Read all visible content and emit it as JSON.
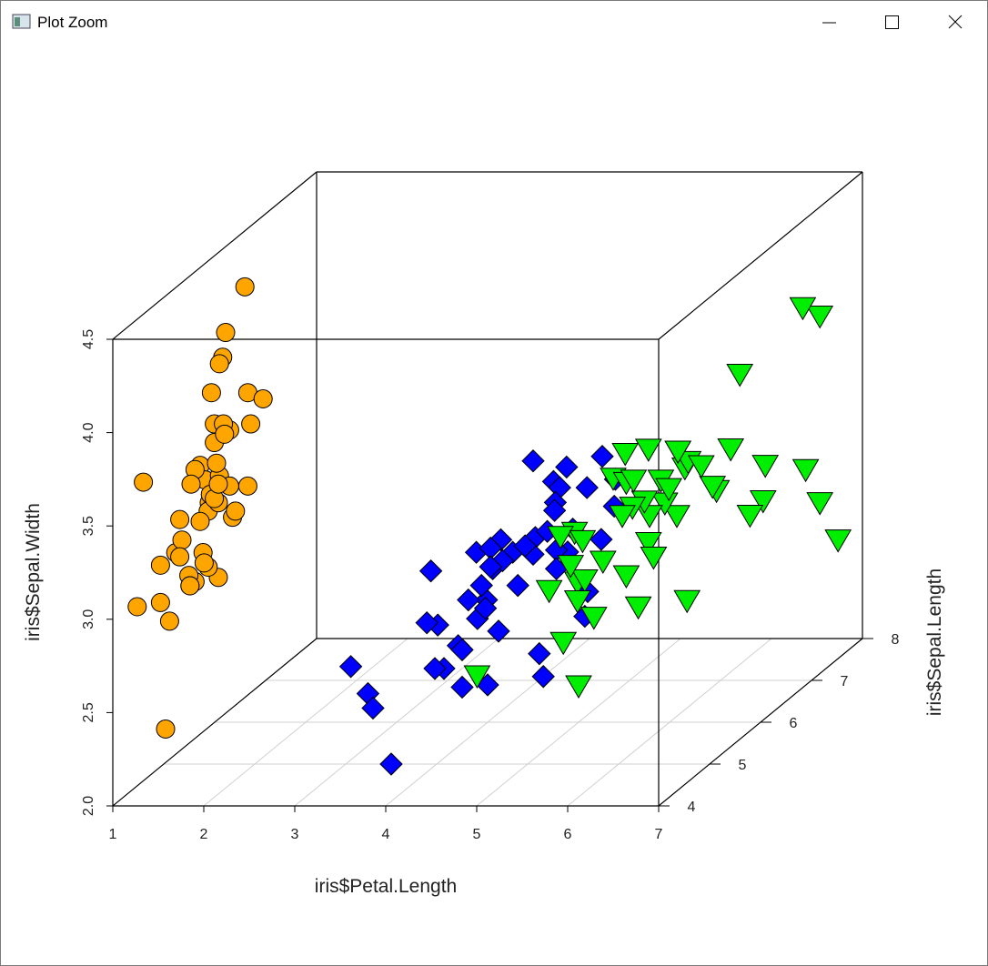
{
  "window": {
    "title": "Plot Zoom"
  },
  "chart_data": {
    "type": "scatter3d",
    "x_label": "iris$Petal.Length",
    "y_label": "iris$Sepal.Width",
    "z_label": "iris$Sepal.Length",
    "xlim": [
      1,
      7
    ],
    "ylim": [
      2,
      4.5
    ],
    "zlim": [
      4,
      8
    ],
    "xticks": [
      1,
      2,
      3,
      4,
      5,
      6,
      7
    ],
    "yticks": [
      {
        "value": 2,
        "label": "2.0"
      },
      {
        "value": 2.5,
        "label": "2.5"
      },
      {
        "value": 3,
        "label": "3.0"
      },
      {
        "value": 3.5,
        "label": "3.5"
      },
      {
        "value": 4,
        "label": "4.0"
      },
      {
        "value": 4.5,
        "label": "4.5"
      }
    ],
    "zticks": [
      4,
      5,
      6,
      7,
      8
    ],
    "grid": true,
    "series": [
      {
        "color": "#ffa500",
        "marker": "circle",
        "x": [
          1.4,
          1.4,
          1.3,
          1.5,
          1.4,
          1.7,
          1.4,
          1.5,
          1.4,
          1.5,
          1.5,
          1.6,
          1.4,
          1.1,
          1.2,
          1.5,
          1.3,
          1.4,
          1.7,
          1.5,
          1.7,
          1.5,
          1.0,
          1.7,
          1.9,
          1.6,
          1.6,
          1.5,
          1.4,
          1.6,
          1.6,
          1.5,
          1.5,
          1.4,
          1.5,
          1.2,
          1.3,
          1.4,
          1.3,
          1.5,
          1.3,
          1.3,
          1.3,
          1.6,
          1.9,
          1.4,
          1.6,
          1.4,
          1.5,
          1.4
        ],
        "y": [
          3.5,
          3.0,
          3.2,
          3.1,
          3.6,
          3.9,
          3.4,
          3.4,
          2.9,
          3.1,
          3.7,
          3.4,
          3.0,
          3.0,
          4.0,
          4.4,
          3.9,
          3.5,
          3.8,
          3.8,
          3.4,
          3.7,
          3.6,
          3.3,
          3.4,
          3.0,
          3.4,
          3.5,
          3.4,
          3.2,
          3.1,
          3.4,
          4.1,
          4.2,
          3.1,
          3.2,
          3.5,
          3.6,
          3.0,
          3.4,
          3.5,
          2.3,
          3.2,
          3.5,
          3.8,
          3.0,
          3.8,
          3.2,
          3.7,
          3.3
        ],
        "z": [
          5.1,
          4.9,
          4.7,
          4.6,
          5.0,
          5.4,
          4.6,
          5.0,
          4.4,
          4.9,
          5.4,
          4.8,
          4.8,
          4.3,
          5.8,
          5.7,
          5.4,
          5.1,
          5.7,
          5.1,
          5.4,
          5.1,
          4.6,
          5.1,
          4.8,
          5.0,
          5.0,
          5.2,
          5.2,
          4.7,
          4.8,
          5.4,
          5.2,
          5.5,
          4.9,
          5.0,
          5.5,
          4.9,
          4.4,
          5.1,
          5.0,
          4.5,
          4.4,
          5.0,
          5.1,
          4.8,
          5.1,
          4.6,
          5.3,
          5.0
        ]
      },
      {
        "color": "#0000ff",
        "marker": "diamond",
        "x": [
          4.7,
          4.5,
          4.9,
          4.0,
          4.6,
          4.5,
          4.7,
          3.3,
          4.6,
          3.9,
          3.5,
          4.2,
          4.0,
          4.7,
          3.6,
          4.4,
          4.5,
          4.1,
          4.5,
          3.9,
          4.8,
          4.0,
          4.9,
          4.7,
          4.3,
          4.4,
          4.8,
          5.0,
          4.5,
          3.5,
          3.8,
          3.7,
          3.9,
          5.1,
          4.5,
          4.5,
          4.7,
          4.4,
          4.1,
          4.0,
          4.4,
          4.6,
          4.0,
          3.3,
          4.2,
          4.2,
          4.2,
          4.3,
          3.0,
          4.1
        ],
        "y": [
          3.2,
          3.2,
          3.1,
          2.3,
          2.8,
          2.8,
          3.3,
          2.4,
          2.9,
          2.7,
          2.0,
          3.0,
          2.2,
          2.9,
          2.9,
          3.1,
          3.0,
          2.7,
          2.2,
          2.5,
          3.2,
          2.8,
          2.5,
          2.8,
          2.9,
          3.0,
          2.8,
          3.0,
          2.9,
          2.6,
          2.4,
          2.4,
          2.7,
          2.7,
          3.0,
          3.4,
          3.1,
          2.3,
          3.0,
          2.5,
          2.6,
          3.0,
          2.6,
          2.3,
          2.7,
          3.0,
          2.9,
          2.9,
          2.5,
          2.8
        ],
        "z": [
          7.0,
          6.4,
          6.9,
          5.5,
          6.5,
          5.7,
          6.3,
          4.9,
          6.6,
          5.2,
          5.0,
          5.9,
          6.0,
          6.1,
          5.6,
          6.7,
          5.6,
          5.8,
          6.2,
          5.6,
          5.9,
          6.1,
          6.3,
          6.1,
          6.4,
          6.6,
          6.8,
          6.7,
          6.0,
          5.7,
          5.5,
          5.5,
          5.8,
          6.0,
          5.4,
          6.0,
          6.7,
          6.3,
          5.6,
          5.5,
          5.5,
          6.1,
          5.8,
          5.0,
          5.6,
          5.7,
          5.7,
          6.2,
          5.1,
          5.7
        ]
      },
      {
        "color": "#00ee00",
        "marker": "triangle-down",
        "x": [
          6.0,
          5.1,
          5.9,
          5.6,
          5.8,
          6.6,
          4.5,
          6.3,
          5.8,
          6.1,
          5.1,
          5.3,
          5.5,
          5.0,
          5.1,
          5.3,
          5.5,
          6.7,
          6.9,
          5.0,
          5.7,
          4.9,
          6.7,
          4.9,
          5.7,
          6.0,
          4.8,
          4.9,
          5.6,
          5.8,
          6.1,
          6.4,
          5.6,
          5.1,
          5.6,
          6.1,
          5.6,
          5.5,
          4.8,
          5.4,
          5.6,
          5.1,
          5.1,
          5.9,
          5.7,
          5.2,
          5.0,
          5.2,
          5.4,
          5.1
        ],
        "y": [
          3.3,
          2.7,
          3.0,
          2.9,
          3.0,
          3.0,
          2.5,
          2.9,
          2.5,
          3.6,
          3.2,
          2.7,
          3.0,
          2.5,
          2.8,
          3.2,
          3.0,
          3.8,
          2.6,
          2.2,
          3.2,
          2.8,
          2.8,
          2.7,
          3.3,
          3.2,
          2.8,
          3.0,
          2.8,
          3.0,
          2.8,
          3.8,
          2.8,
          2.8,
          2.6,
          3.0,
          3.4,
          3.1,
          3.0,
          3.1,
          3.1,
          3.1,
          2.7,
          3.2,
          3.3,
          3.0,
          2.5,
          3.0,
          3.4,
          3.0
        ],
        "z": [
          6.3,
          5.8,
          7.1,
          6.3,
          6.5,
          7.6,
          4.9,
          7.3,
          6.7,
          7.2,
          6.5,
          6.4,
          6.8,
          5.7,
          5.8,
          6.4,
          6.5,
          7.7,
          7.7,
          6.0,
          6.9,
          5.6,
          7.7,
          6.3,
          6.7,
          7.2,
          6.2,
          6.1,
          6.4,
          7.2,
          7.4,
          7.9,
          6.4,
          6.3,
          6.1,
          7.7,
          6.3,
          6.4,
          6.0,
          6.9,
          6.7,
          6.9,
          5.8,
          6.8,
          6.7,
          6.7,
          6.3,
          6.5,
          6.2,
          5.9
        ]
      }
    ]
  }
}
